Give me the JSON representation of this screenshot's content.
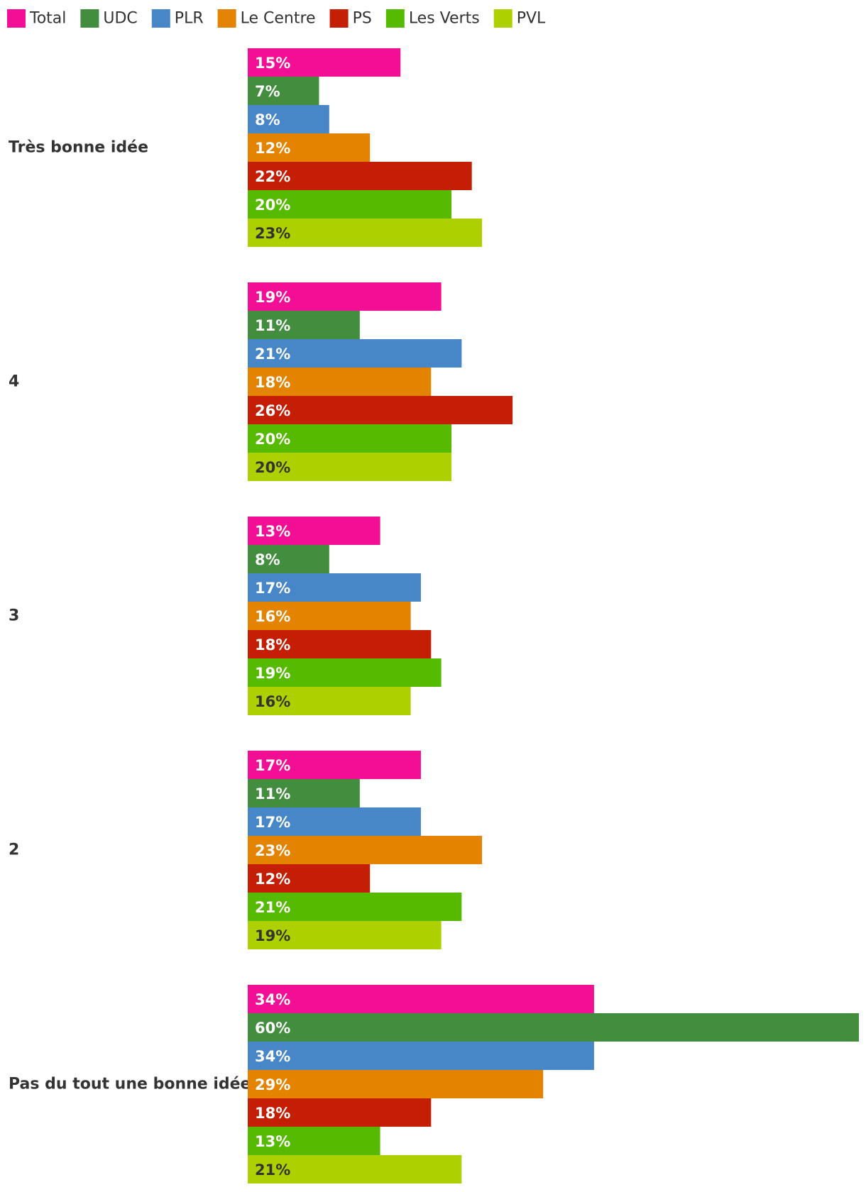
{
  "chart_data": {
    "type": "bar",
    "orientation": "horizontal",
    "title": "",
    "xlabel": "",
    "ylabel": "",
    "grid": false,
    "legend_position": "top-left",
    "xlim": [
      0,
      60
    ],
    "value_format": "{v}%",
    "categories": [
      "Très bonne idée",
      "4",
      "3",
      "2",
      "Pas du tout une bonne idée"
    ],
    "series": [
      {
        "name": "Total",
        "color": "#f30e96",
        "label_color": "#ffffff",
        "values": [
          15,
          19,
          13,
          17,
          34
        ]
      },
      {
        "name": "UDC",
        "color": "#428e3e",
        "label_color": "#ffffff",
        "values": [
          7,
          11,
          8,
          11,
          60
        ]
      },
      {
        "name": "PLR",
        "color": "#4787c8",
        "label_color": "#ffffff",
        "values": [
          8,
          21,
          17,
          17,
          34
        ]
      },
      {
        "name": "Le Centre",
        "color": "#e38300",
        "label_color": "#ffffff",
        "values": [
          12,
          18,
          16,
          23,
          29
        ]
      },
      {
        "name": "PS",
        "color": "#c41f05",
        "label_color": "#ffffff",
        "values": [
          22,
          26,
          18,
          12,
          18
        ]
      },
      {
        "name": "Les Verts",
        "color": "#56ba00",
        "label_color": "#ffffff",
        "values": [
          20,
          20,
          19,
          21,
          13
        ]
      },
      {
        "name": "PVL",
        "color": "#add000",
        "label_color": "#333333",
        "values": [
          23,
          20,
          16,
          19,
          21
        ]
      }
    ]
  }
}
